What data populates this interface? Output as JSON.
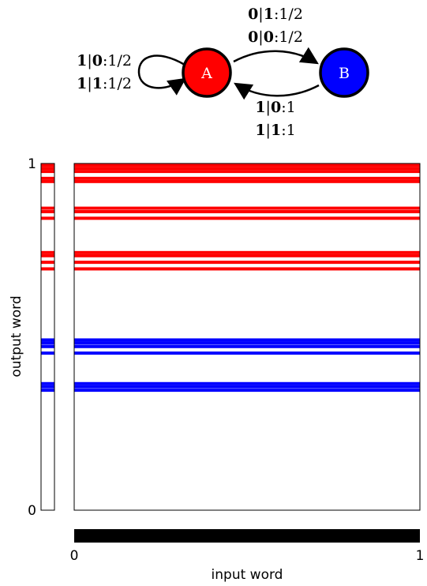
{
  "automaton": {
    "states": [
      {
        "id": "A",
        "label": "A",
        "color": "#ff0000"
      },
      {
        "id": "B",
        "label": "B",
        "color": "#0000ff"
      }
    ],
    "transitions": {
      "self_A": [
        {
          "input": "1",
          "output": "0",
          "prob": "1/2"
        },
        {
          "input": "1",
          "output": "1",
          "prob": "1/2"
        }
      ],
      "A_to_B": [
        {
          "input": "0",
          "output": "1",
          "prob": "1/2"
        },
        {
          "input": "0",
          "output": "0",
          "prob": "1/2"
        }
      ],
      "B_to_A": [
        {
          "input": "1",
          "output": "0",
          "prob": "1"
        },
        {
          "input": "1",
          "output": "1",
          "prob": "1"
        }
      ]
    }
  },
  "plot": {
    "ylabel": "output word",
    "xlabel": "input word",
    "y_tick_min": "0",
    "y_tick_max": "1",
    "x_tick_min": "0",
    "x_tick_max": "1",
    "x_range": [
      0,
      1
    ],
    "y_range": [
      0,
      1
    ],
    "colors": {
      "A": "#ff0000",
      "B": "#0000ff",
      "input_bar": "#000000"
    },
    "output_intervals": [
      {
        "state": "A",
        "y0": 0.68,
        "y1": 1.0
      },
      {
        "state": "B",
        "y0": 0.33,
        "y1": 0.495
      }
    ],
    "bands": [
      {
        "state": "A",
        "y": 0.995
      },
      {
        "state": "A",
        "y": 0.986
      },
      {
        "state": "A",
        "y": 0.977
      },
      {
        "state": "A",
        "y": 0.957
      },
      {
        "state": "A",
        "y": 0.948
      },
      {
        "state": "A",
        "y": 0.871
      },
      {
        "state": "A",
        "y": 0.861
      },
      {
        "state": "A",
        "y": 0.842
      },
      {
        "state": "A",
        "y": 0.743
      },
      {
        "state": "A",
        "y": 0.734
      },
      {
        "state": "A",
        "y": 0.715
      },
      {
        "state": "A",
        "y": 0.696
      },
      {
        "state": "B",
        "y": 0.491
      },
      {
        "state": "B",
        "y": 0.482
      },
      {
        "state": "B",
        "y": 0.472
      },
      {
        "state": "B",
        "y": 0.453
      },
      {
        "state": "B",
        "y": 0.365
      },
      {
        "state": "B",
        "y": 0.356
      },
      {
        "state": "B",
        "y": 0.346
      }
    ]
  }
}
